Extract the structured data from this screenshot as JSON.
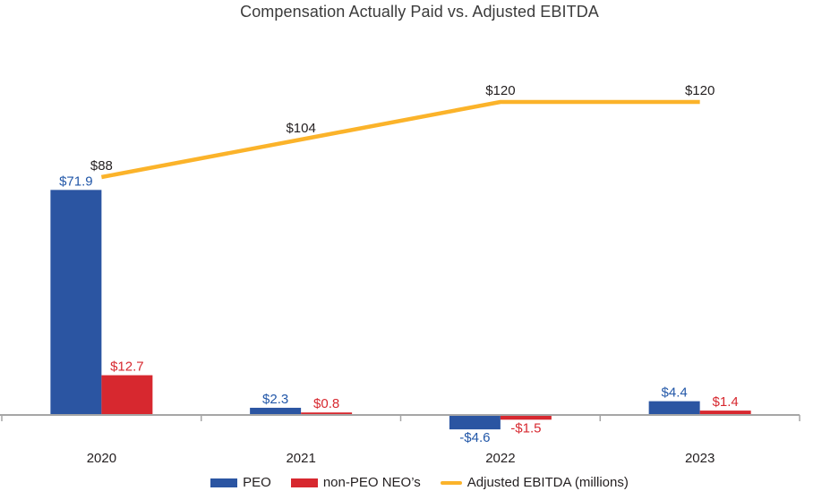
{
  "title": "Compensation Actually Paid vs. Adjusted EBITDA",
  "chart_data": {
    "type": "combo-bar-line",
    "title": "Compensation Actually Paid vs. Adjusted EBITDA",
    "categories": [
      "2020",
      "2021",
      "2022",
      "2023"
    ],
    "series": [
      {
        "name": "PEO",
        "type": "bar",
        "color": "#2b55a2",
        "label_color": "#2257a8",
        "values": [
          71.9,
          2.3,
          -4.6,
          4.4
        ],
        "labels": [
          "$71.9",
          "$2.3",
          "-$4.6",
          "$4.4"
        ]
      },
      {
        "name": "non-PEO NEO’s",
        "type": "bar",
        "color": "#d7282f",
        "label_color": "#d7282f",
        "values": [
          12.7,
          0.8,
          -1.5,
          1.4
        ],
        "labels": [
          "$12.7",
          "$0.8",
          "-$1.5",
          "$1.4"
        ]
      },
      {
        "name": "Adjusted EBITDA (millions)",
        "type": "line",
        "color": "#fbb32a",
        "label_color": "#231f20",
        "values": [
          88,
          104,
          120,
          120
        ],
        "labels": [
          "$88",
          "$104",
          "$120",
          "$120"
        ]
      }
    ],
    "axis_color": "#a6a6a6",
    "category_label_color": "#231f20",
    "grid": false,
    "legend_position": "bottom",
    "value_unit": "millions USD"
  }
}
